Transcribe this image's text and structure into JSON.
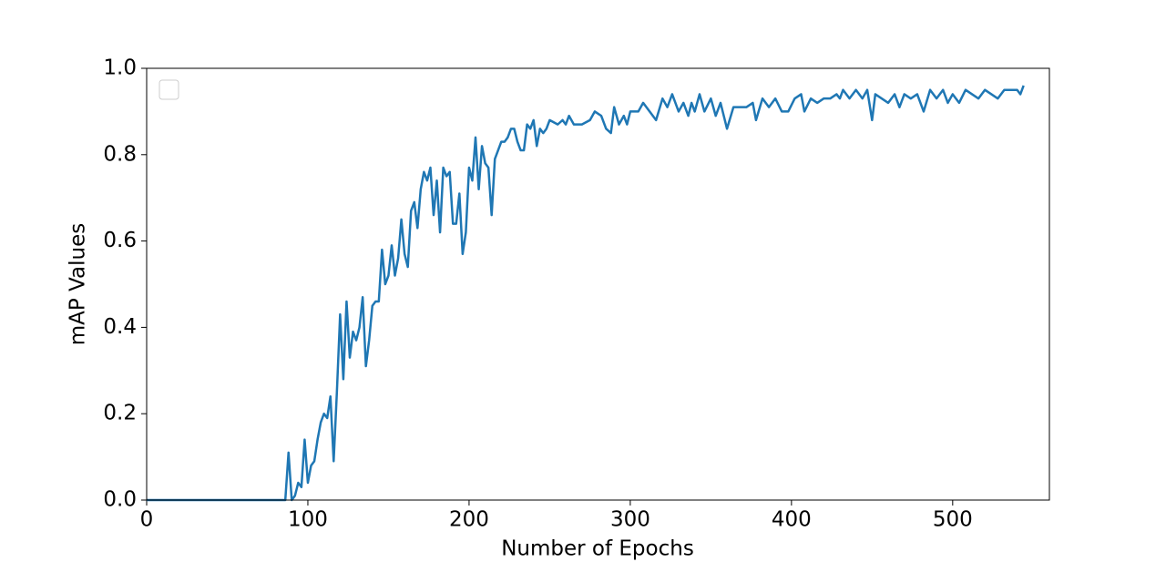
{
  "chart_data": {
    "type": "line",
    "xlabel": "Number of Epochs",
    "ylabel": "mAP Values",
    "x": [
      0,
      86,
      88,
      90,
      92,
      94,
      96,
      98,
      100,
      102,
      104,
      106,
      108,
      110,
      112,
      114,
      116,
      118,
      120,
      122,
      124,
      126,
      128,
      130,
      132,
      134,
      136,
      138,
      140,
      142,
      144,
      146,
      148,
      150,
      152,
      154,
      156,
      158,
      160,
      162,
      164,
      166,
      168,
      170,
      172,
      174,
      176,
      178,
      180,
      182,
      184,
      186,
      188,
      190,
      192,
      194,
      196,
      198,
      200,
      202,
      204,
      206,
      208,
      210,
      212,
      214,
      216,
      218,
      220,
      222,
      224,
      226,
      228,
      230,
      232,
      234,
      236,
      238,
      240,
      242,
      244,
      246,
      248,
      250,
      255,
      258,
      260,
      262,
      265,
      270,
      275,
      278,
      282,
      285,
      288,
      290,
      293,
      296,
      298,
      300,
      305,
      308,
      312,
      316,
      320,
      323,
      326,
      330,
      333,
      336,
      338,
      340,
      343,
      346,
      350,
      353,
      356,
      360,
      364,
      368,
      372,
      376,
      378,
      382,
      386,
      390,
      394,
      398,
      402,
      406,
      408,
      412,
      416,
      420,
      424,
      428,
      430,
      432,
      436,
      440,
      444,
      447,
      450,
      452,
      456,
      460,
      464,
      467,
      470,
      474,
      478,
      482,
      486,
      490,
      494,
      497,
      500,
      504,
      508,
      512,
      516,
      520,
      524,
      528,
      532,
      536,
      540,
      542,
      544
    ],
    "series": [
      {
        "color": "#1f77b4",
        "values": [
          0,
          0,
          0.11,
          0,
          0.01,
          0.04,
          0.03,
          0.14,
          0.04,
          0.08,
          0.09,
          0.14,
          0.18,
          0.2,
          0.19,
          0.24,
          0.09,
          0.25,
          0.43,
          0.28,
          0.46,
          0.33,
          0.39,
          0.37,
          0.4,
          0.47,
          0.31,
          0.37,
          0.45,
          0.46,
          0.46,
          0.58,
          0.5,
          0.52,
          0.59,
          0.52,
          0.56,
          0.65,
          0.57,
          0.54,
          0.67,
          0.69,
          0.63,
          0.72,
          0.76,
          0.74,
          0.77,
          0.66,
          0.74,
          0.62,
          0.77,
          0.75,
          0.76,
          0.64,
          0.64,
          0.71,
          0.57,
          0.62,
          0.77,
          0.74,
          0.84,
          0.72,
          0.82,
          0.78,
          0.77,
          0.66,
          0.79,
          0.81,
          0.83,
          0.83,
          0.84,
          0.86,
          0.86,
          0.83,
          0.81,
          0.81,
          0.87,
          0.86,
          0.88,
          0.82,
          0.86,
          0.85,
          0.86,
          0.88,
          0.87,
          0.88,
          0.87,
          0.89,
          0.87,
          0.87,
          0.88,
          0.9,
          0.89,
          0.86,
          0.85,
          0.91,
          0.87,
          0.89,
          0.87,
          0.9,
          0.9,
          0.92,
          0.9,
          0.88,
          0.93,
          0.91,
          0.94,
          0.9,
          0.92,
          0.89,
          0.92,
          0.9,
          0.94,
          0.9,
          0.93,
          0.89,
          0.92,
          0.86,
          0.91,
          0.91,
          0.91,
          0.92,
          0.88,
          0.93,
          0.91,
          0.93,
          0.9,
          0.9,
          0.93,
          0.94,
          0.9,
          0.93,
          0.92,
          0.93,
          0.93,
          0.94,
          0.93,
          0.95,
          0.93,
          0.95,
          0.93,
          0.95,
          0.88,
          0.94,
          0.93,
          0.92,
          0.94,
          0.91,
          0.94,
          0.93,
          0.94,
          0.9,
          0.95,
          0.93,
          0.95,
          0.92,
          0.94,
          0.92,
          0.95,
          0.94,
          0.93,
          0.95,
          0.94,
          0.93,
          0.95,
          0.95,
          0.95,
          0.94,
          0.96
        ]
      }
    ],
    "xlim": [
      0,
      560
    ],
    "ylim": [
      0,
      1
    ],
    "xticks": [
      0,
      100,
      200,
      300,
      400,
      500
    ],
    "yticks": [
      {
        "value": 0,
        "label": "0.0"
      },
      {
        "value": 0.2,
        "label": "0.2"
      },
      {
        "value": 0.4,
        "label": "0.4"
      },
      {
        "value": 0.6,
        "label": "0.6"
      },
      {
        "value": 0.8,
        "label": "0.8"
      },
      {
        "value": 1,
        "label": "1.0"
      }
    ]
  }
}
